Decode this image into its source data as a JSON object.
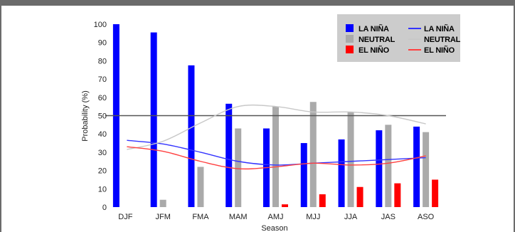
{
  "chart_data": {
    "type": "bar",
    "xlabel": "Season",
    "ylabel": "Probability (%)",
    "ylim": [
      0,
      100
    ],
    "yticks": [
      0,
      10,
      20,
      30,
      40,
      50,
      60,
      70,
      80,
      90,
      100
    ],
    "categories": [
      "DJF",
      "JFM",
      "FMA",
      "MAM",
      "AMJ",
      "MJJ",
      "JJA",
      "JAS",
      "ASO"
    ],
    "reference_line": 50,
    "grid": false,
    "legend_position": "top-right",
    "series": [
      {
        "name": "LA NIÑA",
        "kind": "bar",
        "color": "#0000ff",
        "values": [
          100,
          95.5,
          77.5,
          56.5,
          43,
          35,
          37,
          42,
          44
        ]
      },
      {
        "name": "NEUTRAL",
        "kind": "bar",
        "color": "#aaaaaa",
        "values": [
          0,
          4,
          22,
          43,
          55,
          57.5,
          52,
          45,
          41
        ]
      },
      {
        "name": "EL NIÑO",
        "kind": "bar",
        "color": "#ff0000",
        "values": [
          0,
          0,
          0,
          0,
          1.5,
          7,
          11,
          13,
          15
        ]
      },
      {
        "name": "LA NIÑA",
        "kind": "line",
        "color": "#3333ff",
        "values": [
          36.5,
          34.5,
          30,
          25,
          23,
          24,
          25,
          26,
          27
        ]
      },
      {
        "name": "NEUTRAL",
        "kind": "line",
        "color": "#c8c8c8",
        "values": [
          31.5,
          36,
          46,
          55,
          55,
          52,
          52,
          50,
          45.5
        ]
      },
      {
        "name": "EL NIÑO",
        "kind": "line",
        "color": "#ff4040",
        "values": [
          33,
          30.5,
          25,
          21,
          22,
          24,
          23,
          24,
          28
        ]
      }
    ]
  }
}
